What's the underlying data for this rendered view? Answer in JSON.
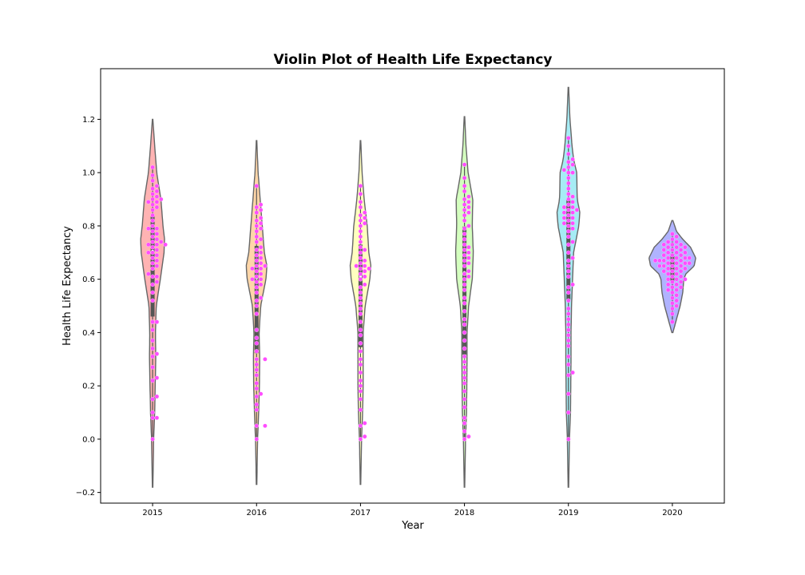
{
  "chart_data": {
    "type": "violin",
    "title": "Violin Plot of Health Life Expectancy",
    "xlabel": "Year",
    "ylabel": "Health Life Expectancy",
    "categories": [
      "2015",
      "2016",
      "2017",
      "2018",
      "2019",
      "2020"
    ],
    "ylim": [
      -0.24,
      1.39
    ],
    "yticks": [
      -0.2,
      0.0,
      0.2,
      0.4,
      0.6,
      0.8,
      1.0,
      1.2
    ],
    "ytick_labels": [
      "−0.2",
      "0.0",
      "0.2",
      "0.4",
      "0.6",
      "0.8",
      "1.0",
      "1.2"
    ],
    "grid": false,
    "legend": "none",
    "violins": [
      {
        "category": "2015",
        "fill": "#ffb3b3",
        "y_min": -0.18,
        "y_max": 1.2,
        "profile": [
          [
            -0.18,
            0.005
          ],
          [
            0.0,
            0.02
          ],
          [
            0.1,
            0.04
          ],
          [
            0.2,
            0.05
          ],
          [
            0.3,
            0.06
          ],
          [
            0.4,
            0.055
          ],
          [
            0.5,
            0.07
          ],
          [
            0.6,
            0.15
          ],
          [
            0.7,
            0.22
          ],
          [
            0.75,
            0.23
          ],
          [
            0.8,
            0.2
          ],
          [
            0.9,
            0.16
          ],
          [
            1.0,
            0.08
          ],
          [
            1.1,
            0.04
          ],
          [
            1.2,
            0.005
          ]
        ],
        "points": [
          0.0,
          0.08,
          0.08,
          0.1,
          0.15,
          0.16,
          0.22,
          0.23,
          0.27,
          0.31,
          0.32,
          0.34,
          0.37,
          0.41,
          0.44,
          0.44,
          0.52,
          0.55,
          0.58,
          0.59,
          0.61,
          0.61,
          0.62,
          0.64,
          0.65,
          0.66,
          0.67,
          0.68,
          0.69,
          0.7,
          0.7,
          0.71,
          0.72,
          0.73,
          0.73,
          0.73,
          0.74,
          0.74,
          0.75,
          0.76,
          0.77,
          0.78,
          0.79,
          0.79,
          0.8,
          0.82,
          0.84,
          0.86,
          0.87,
          0.88,
          0.89,
          0.89,
          0.9,
          0.9,
          0.91,
          0.92,
          0.93,
          0.94,
          0.95,
          0.97,
          0.99,
          1.02
        ]
      },
      {
        "category": "2016",
        "fill": "#ffd6a8",
        "y_min": -0.17,
        "y_max": 1.12,
        "profile": [
          [
            -0.17,
            0.005
          ],
          [
            0.0,
            0.02
          ],
          [
            0.1,
            0.04
          ],
          [
            0.2,
            0.055
          ],
          [
            0.3,
            0.06
          ],
          [
            0.4,
            0.05
          ],
          [
            0.5,
            0.08
          ],
          [
            0.6,
            0.18
          ],
          [
            0.65,
            0.2
          ],
          [
            0.7,
            0.15
          ],
          [
            0.8,
            0.11
          ],
          [
            0.9,
            0.07
          ],
          [
            1.0,
            0.03
          ],
          [
            1.12,
            0.005
          ]
        ],
        "points": [
          0.0,
          0.05,
          0.05,
          0.11,
          0.13,
          0.16,
          0.17,
          0.19,
          0.21,
          0.24,
          0.26,
          0.28,
          0.3,
          0.3,
          0.33,
          0.36,
          0.38,
          0.41,
          0.47,
          0.5,
          0.52,
          0.53,
          0.55,
          0.57,
          0.58,
          0.59,
          0.6,
          0.6,
          0.61,
          0.62,
          0.63,
          0.64,
          0.64,
          0.65,
          0.65,
          0.66,
          0.67,
          0.68,
          0.69,
          0.7,
          0.71,
          0.72,
          0.74,
          0.75,
          0.76,
          0.78,
          0.79,
          0.8,
          0.81,
          0.82,
          0.83,
          0.85,
          0.86,
          0.87,
          0.88,
          0.95
        ]
      },
      {
        "category": "2017",
        "fill": "#ffffbf",
        "y_min": -0.17,
        "y_max": 1.12,
        "profile": [
          [
            -0.17,
            0.005
          ],
          [
            0.0,
            0.02
          ],
          [
            0.1,
            0.04
          ],
          [
            0.2,
            0.05
          ],
          [
            0.3,
            0.05
          ],
          [
            0.4,
            0.05
          ],
          [
            0.5,
            0.09
          ],
          [
            0.6,
            0.18
          ],
          [
            0.65,
            0.2
          ],
          [
            0.7,
            0.16
          ],
          [
            0.8,
            0.13
          ],
          [
            0.9,
            0.07
          ],
          [
            1.0,
            0.03
          ],
          [
            1.12,
            0.005
          ]
        ],
        "points": [
          0.0,
          0.01,
          0.05,
          0.06,
          0.11,
          0.15,
          0.18,
          0.2,
          0.22,
          0.25,
          0.28,
          0.3,
          0.33,
          0.36,
          0.39,
          0.41,
          0.44,
          0.47,
          0.49,
          0.51,
          0.53,
          0.55,
          0.57,
          0.58,
          0.6,
          0.61,
          0.62,
          0.63,
          0.64,
          0.64,
          0.65,
          0.65,
          0.66,
          0.67,
          0.68,
          0.7,
          0.71,
          0.72,
          0.74,
          0.76,
          0.78,
          0.8,
          0.81,
          0.82,
          0.83,
          0.84,
          0.85,
          0.87,
          0.89,
          0.92,
          0.95
        ]
      },
      {
        "category": "2018",
        "fill": "#d4ffbf",
        "y_min": -0.18,
        "y_max": 1.21,
        "profile": [
          [
            -0.18,
            0.005
          ],
          [
            0.0,
            0.02
          ],
          [
            0.1,
            0.04
          ],
          [
            0.2,
            0.045
          ],
          [
            0.3,
            0.05
          ],
          [
            0.4,
            0.05
          ],
          [
            0.5,
            0.08
          ],
          [
            0.6,
            0.15
          ],
          [
            0.7,
            0.17
          ],
          [
            0.8,
            0.15
          ],
          [
            0.9,
            0.16
          ],
          [
            1.0,
            0.07
          ],
          [
            1.1,
            0.03
          ],
          [
            1.21,
            0.005
          ]
        ],
        "points": [
          0.0,
          0.01,
          0.03,
          0.06,
          0.08,
          0.12,
          0.15,
          0.18,
          0.21,
          0.23,
          0.25,
          0.27,
          0.29,
          0.31,
          0.34,
          0.37,
          0.4,
          0.43,
          0.45,
          0.48,
          0.51,
          0.53,
          0.56,
          0.58,
          0.6,
          0.61,
          0.62,
          0.63,
          0.65,
          0.66,
          0.67,
          0.68,
          0.69,
          0.7,
          0.71,
          0.72,
          0.73,
          0.75,
          0.77,
          0.79,
          0.8,
          0.82,
          0.84,
          0.85,
          0.86,
          0.87,
          0.88,
          0.89,
          0.9,
          0.91,
          0.93,
          0.95,
          0.98,
          1.03
        ]
      },
      {
        "category": "2019",
        "fill": "#a6ecf5",
        "y_min": -0.18,
        "y_max": 1.32,
        "profile": [
          [
            -0.18,
            0.005
          ],
          [
            0.0,
            0.02
          ],
          [
            0.1,
            0.04
          ],
          [
            0.2,
            0.045
          ],
          [
            0.3,
            0.05
          ],
          [
            0.4,
            0.05
          ],
          [
            0.5,
            0.06
          ],
          [
            0.6,
            0.08
          ],
          [
            0.7,
            0.1
          ],
          [
            0.8,
            0.2
          ],
          [
            0.85,
            0.22
          ],
          [
            0.9,
            0.17
          ],
          [
            1.0,
            0.16
          ],
          [
            1.05,
            0.1
          ],
          [
            1.1,
            0.07
          ],
          [
            1.2,
            0.03
          ],
          [
            1.32,
            0.005
          ]
        ],
        "points": [
          0.0,
          0.1,
          0.17,
          0.24,
          0.25,
          0.28,
          0.31,
          0.35,
          0.37,
          0.39,
          0.41,
          0.43,
          0.45,
          0.47,
          0.49,
          0.52,
          0.55,
          0.57,
          0.58,
          0.61,
          0.63,
          0.65,
          0.67,
          0.68,
          0.7,
          0.73,
          0.74,
          0.76,
          0.78,
          0.79,
          0.8,
          0.81,
          0.81,
          0.82,
          0.83,
          0.83,
          0.84,
          0.85,
          0.85,
          0.86,
          0.86,
          0.87,
          0.87,
          0.88,
          0.89,
          0.9,
          0.91,
          0.92,
          0.94,
          0.96,
          0.98,
          1.0,
          1.0,
          1.01,
          1.02,
          1.03,
          1.04,
          1.05,
          1.07,
          1.1,
          1.13
        ]
      },
      {
        "category": "2020",
        "fill": "#b0b3ff",
        "y_min": 0.4,
        "y_max": 0.82,
        "profile": [
          [
            0.4,
            0.01
          ],
          [
            0.45,
            0.08
          ],
          [
            0.5,
            0.15
          ],
          [
            0.55,
            0.2
          ],
          [
            0.6,
            0.22
          ],
          [
            0.62,
            0.26
          ],
          [
            0.65,
            0.42
          ],
          [
            0.68,
            0.45
          ],
          [
            0.72,
            0.35
          ],
          [
            0.75,
            0.2
          ],
          [
            0.78,
            0.08
          ],
          [
            0.82,
            0.01
          ]
        ],
        "points": [
          0.44,
          0.47,
          0.49,
          0.5,
          0.51,
          0.52,
          0.53,
          0.54,
          0.55,
          0.56,
          0.56,
          0.57,
          0.57,
          0.58,
          0.58,
          0.59,
          0.59,
          0.6,
          0.6,
          0.6,
          0.61,
          0.61,
          0.62,
          0.62,
          0.63,
          0.63,
          0.63,
          0.64,
          0.64,
          0.64,
          0.65,
          0.65,
          0.65,
          0.65,
          0.66,
          0.66,
          0.66,
          0.66,
          0.67,
          0.67,
          0.67,
          0.67,
          0.67,
          0.68,
          0.68,
          0.68,
          0.68,
          0.69,
          0.69,
          0.69,
          0.7,
          0.7,
          0.7,
          0.71,
          0.71,
          0.71,
          0.72,
          0.72,
          0.72,
          0.73,
          0.73,
          0.73,
          0.74,
          0.74,
          0.75,
          0.76,
          0.77
        ]
      }
    ],
    "colors": {
      "point": "#ff4dff",
      "violin_edge": "#666666",
      "inner_box": "#555555"
    }
  }
}
